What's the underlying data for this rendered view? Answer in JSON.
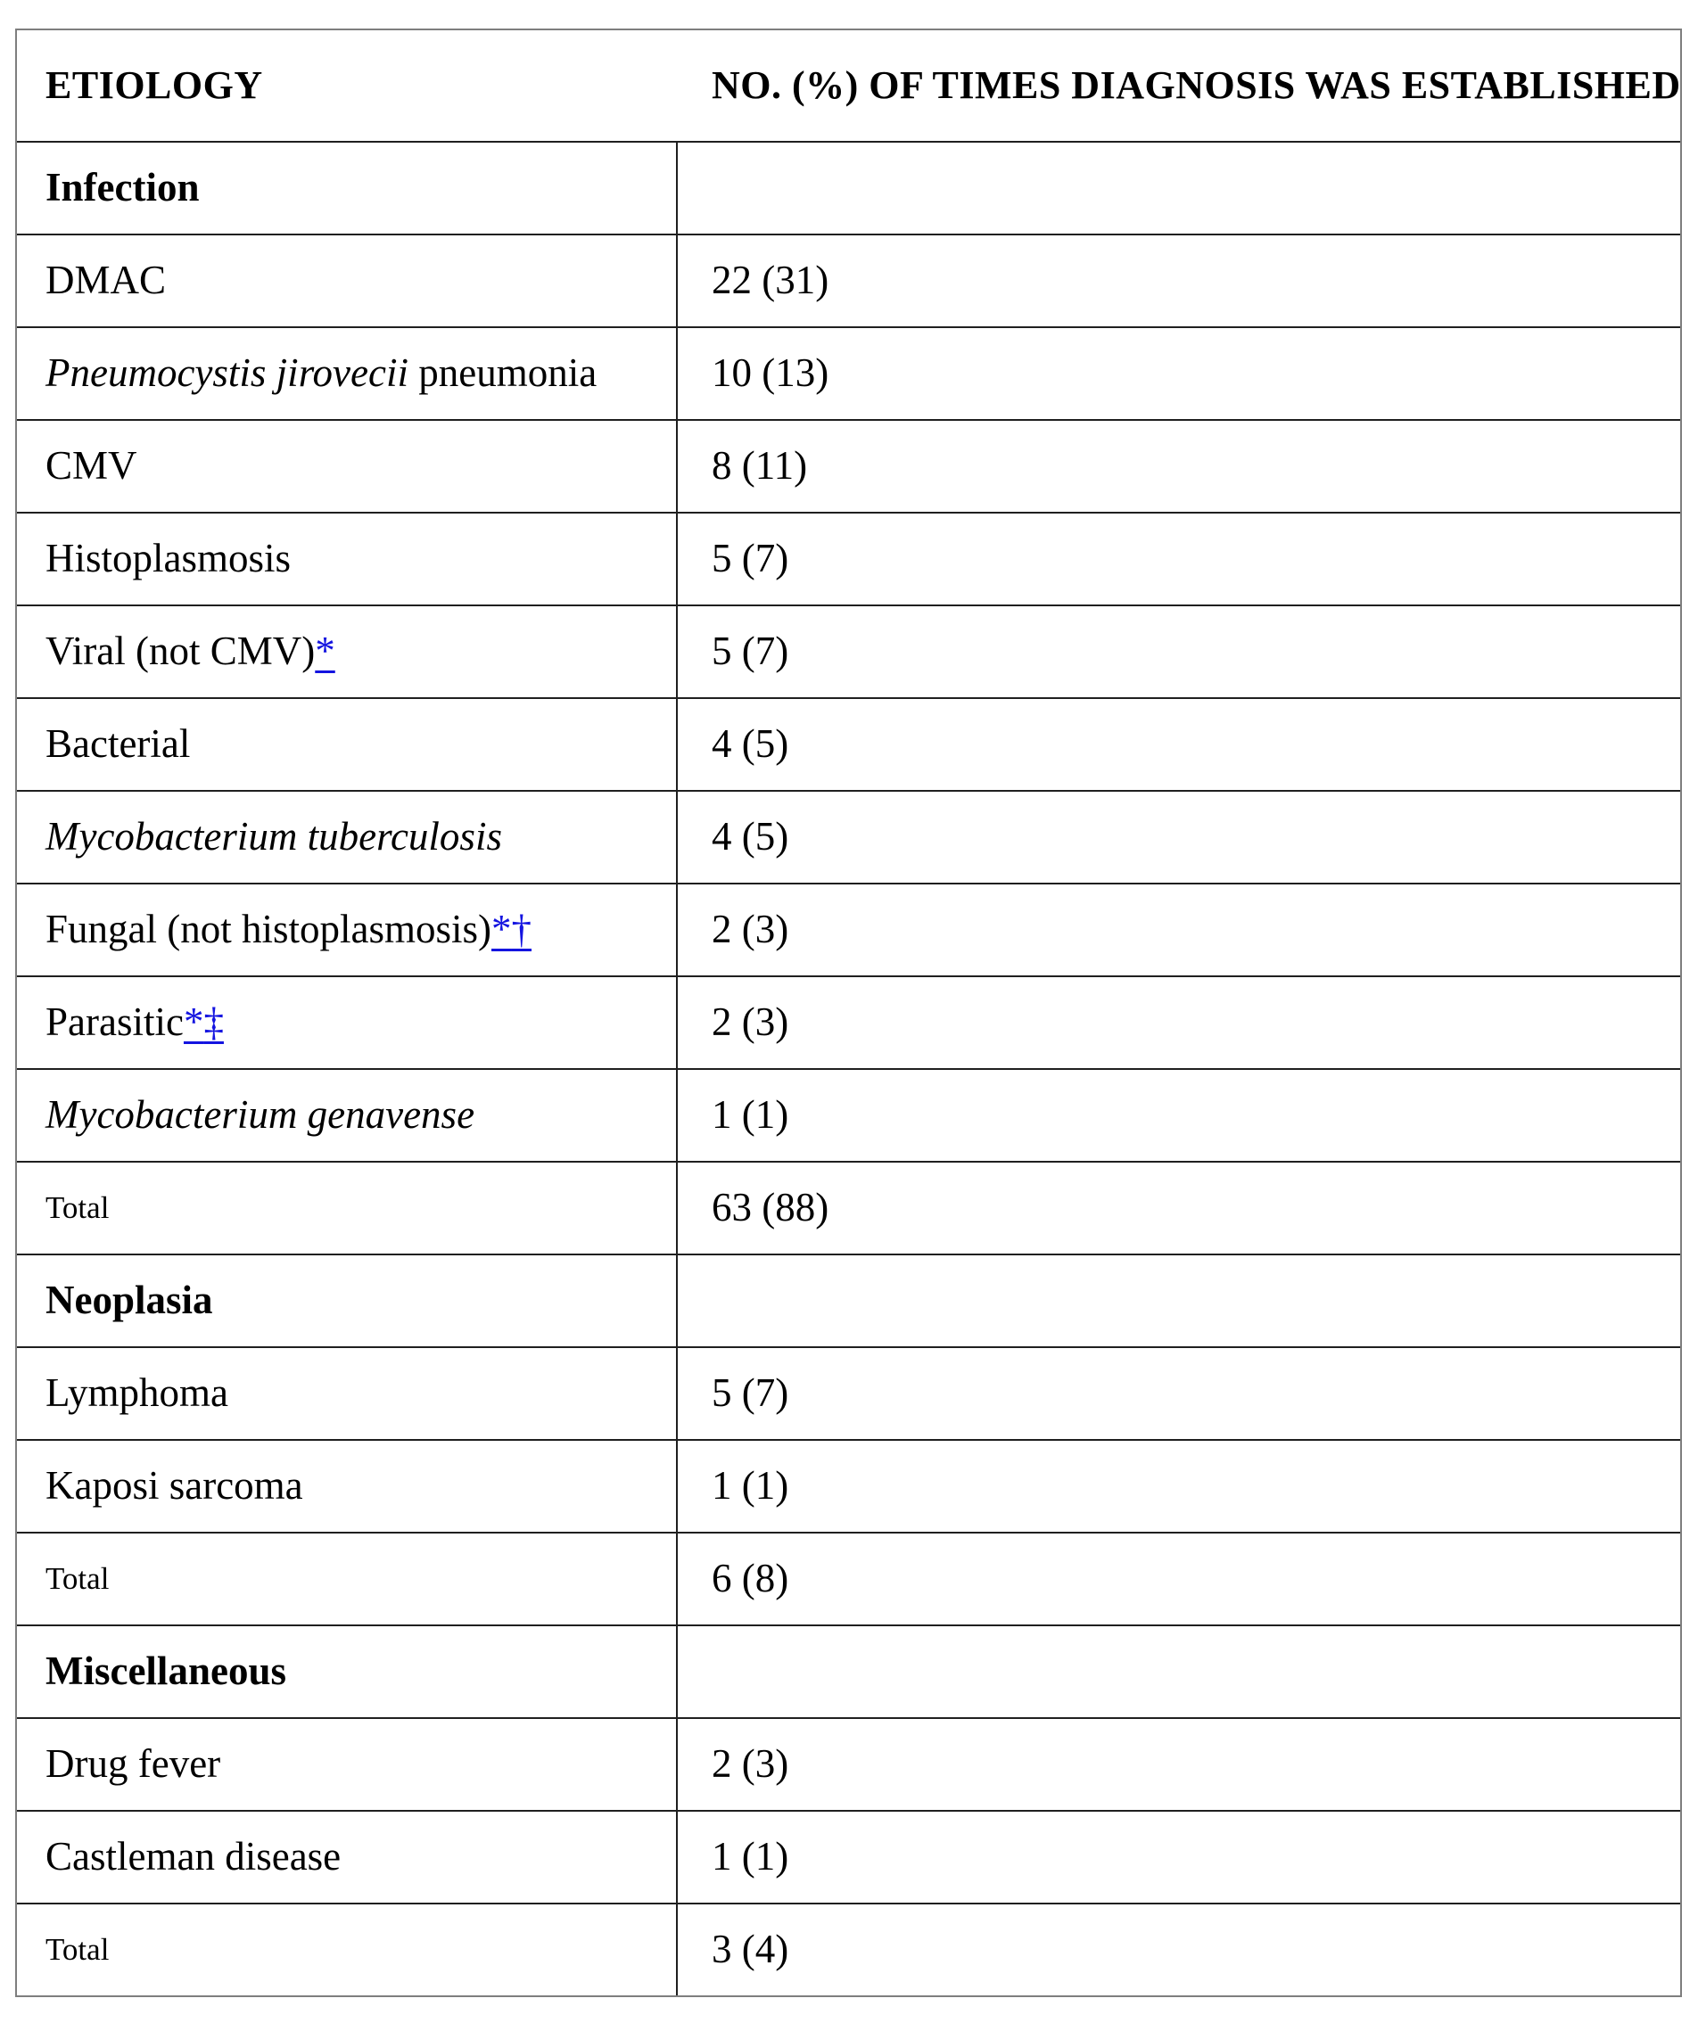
{
  "table": {
    "header": {
      "etiology": "ETIOLOGY",
      "count": "NO. (%) OF TIMES DIAGNOSIS WAS ESTABLISHED"
    },
    "colors": {
      "link_blue": "#1414e0",
      "text": "#000000",
      "border_inner": "#1f1f1f",
      "border_outer": "#7e7e7e"
    },
    "footnote_marks": [
      "*",
      "†",
      "‡"
    ],
    "rows": [
      {
        "type": "section",
        "text": "Infection",
        "value": ""
      },
      {
        "type": "item",
        "text": "DMAC",
        "value": "22 (31)"
      },
      {
        "type": "item",
        "italic": "Pneumocystis jirovecii",
        "text": " pneumonia",
        "value": "10 (13)"
      },
      {
        "type": "item",
        "text": "CMV",
        "value": "8 (11)"
      },
      {
        "type": "item",
        "text": "Histoplasmosis",
        "value": "5 (7)"
      },
      {
        "type": "item",
        "text": "Viral (not CMV)",
        "links": [
          "*"
        ],
        "value": "5 (7)"
      },
      {
        "type": "item",
        "text": "Bacterial",
        "value": "4 (5)"
      },
      {
        "type": "item",
        "italic": "Mycobacterium tuberculosis",
        "text": "",
        "value": "4 (5)"
      },
      {
        "type": "item",
        "text": "Fungal (not histoplasmosis)",
        "links": [
          "*",
          "†"
        ],
        "value": "2 (3)"
      },
      {
        "type": "item",
        "text": "Parasitic",
        "links": [
          "*",
          "‡"
        ],
        "value": "2 (3)"
      },
      {
        "type": "item",
        "italic": "Mycobacterium genavense",
        "text": "",
        "value": "1 (1)"
      },
      {
        "type": "total",
        "text": "Total",
        "value": "63 (88)"
      },
      {
        "type": "section",
        "text": "Neoplasia",
        "value": ""
      },
      {
        "type": "item",
        "text": "Lymphoma",
        "value": "5 (7)"
      },
      {
        "type": "item",
        "text": "Kaposi sarcoma",
        "value": "1 (1)"
      },
      {
        "type": "total",
        "text": "Total",
        "value": "6 (8)"
      },
      {
        "type": "section",
        "text": "Miscellaneous",
        "value": ""
      },
      {
        "type": "item",
        "text": "Drug fever",
        "value": "2 (3)"
      },
      {
        "type": "item",
        "text": "Castleman disease",
        "value": "1 (1)"
      },
      {
        "type": "total",
        "text": "Total",
        "value": "3 (4)"
      }
    ]
  }
}
